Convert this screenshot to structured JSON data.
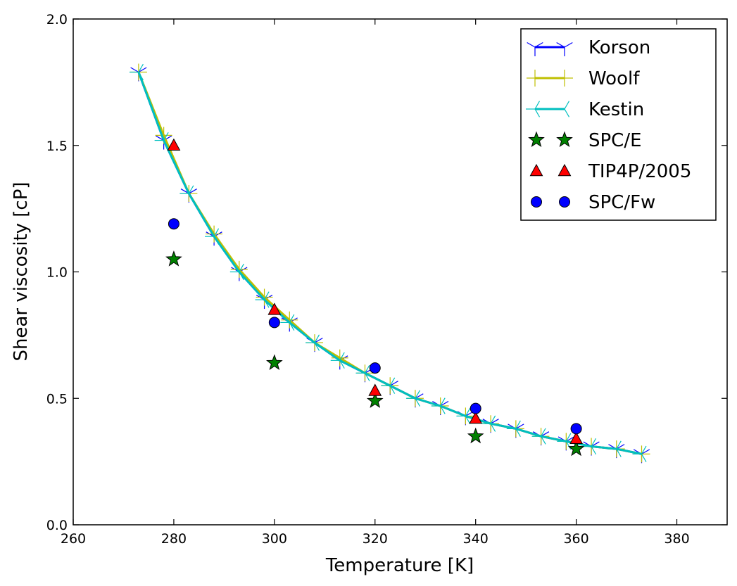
{
  "chart_data": {
    "type": "line",
    "title": "",
    "xlabel": "Temperature [K]",
    "ylabel": "Shear viscosity [cP]",
    "xlim": [
      260,
      390
    ],
    "ylim": [
      0.0,
      2.0
    ],
    "xticks": [
      "260",
      "280",
      "300",
      "320",
      "340",
      "360",
      "380"
    ],
    "yticks": [
      "0.0",
      "0.5",
      "1.0",
      "1.5",
      "2.0"
    ],
    "grid": false,
    "legend_position": "top-right",
    "series": [
      {
        "name": "Korson",
        "color": "#0000ff",
        "marker": "tri_down",
        "x": [
          273,
          278,
          283,
          288,
          293,
          298,
          303,
          308,
          313,
          318,
          323,
          328,
          333,
          338,
          343,
          348,
          353,
          358,
          363,
          368,
          373
        ],
        "y": [
          1.79,
          1.52,
          1.31,
          1.14,
          1.0,
          0.89,
          0.8,
          0.72,
          0.65,
          0.6,
          0.55,
          0.5,
          0.47,
          0.43,
          0.4,
          0.38,
          0.35,
          0.33,
          0.31,
          0.3,
          0.28
        ]
      },
      {
        "name": "Woolf",
        "color": "#bfbf00",
        "marker": "plus",
        "x": [
          273,
          278,
          283,
          288,
          293,
          298,
          303,
          308,
          313,
          318,
          323,
          328,
          333,
          338,
          343,
          348,
          353,
          358,
          363,
          368,
          373
        ],
        "y": [
          1.79,
          1.54,
          1.31,
          1.15,
          1.01,
          0.9,
          0.81,
          0.72,
          0.66,
          0.6,
          0.55,
          0.5,
          0.47,
          0.43,
          0.4,
          0.38,
          0.35,
          0.33,
          0.31,
          0.3,
          0.28
        ]
      },
      {
        "name": "Kestin",
        "color": "#00bfbf",
        "marker": "tri_left",
        "x": [
          273,
          278,
          283,
          288,
          293,
          298,
          303,
          308,
          313,
          318,
          323,
          328,
          333,
          338,
          343,
          348,
          353,
          358,
          363,
          368,
          373
        ],
        "y": [
          1.79,
          1.52,
          1.31,
          1.14,
          1.0,
          0.89,
          0.8,
          0.72,
          0.65,
          0.6,
          0.55,
          0.5,
          0.47,
          0.43,
          0.4,
          0.38,
          0.35,
          0.33,
          0.31,
          0.3,
          0.28
        ]
      },
      {
        "name": "SPC/E",
        "color": "#008000",
        "marker": "star",
        "x": [
          280,
          300,
          320,
          340,
          360
        ],
        "y": [
          1.05,
          0.64,
          0.49,
          0.35,
          0.3
        ]
      },
      {
        "name": "TIP4P/2005",
        "color": "#ff0000",
        "marker": "triangle",
        "x": [
          280,
          300,
          320,
          340,
          360
        ],
        "y": [
          1.5,
          0.85,
          0.53,
          0.42,
          0.34
        ]
      },
      {
        "name": "SPC/Fw",
        "color": "#0000ff",
        "marker": "circle",
        "x": [
          280,
          300,
          320,
          340,
          360
        ],
        "y": [
          1.19,
          0.8,
          0.62,
          0.46,
          0.38
        ]
      }
    ]
  }
}
